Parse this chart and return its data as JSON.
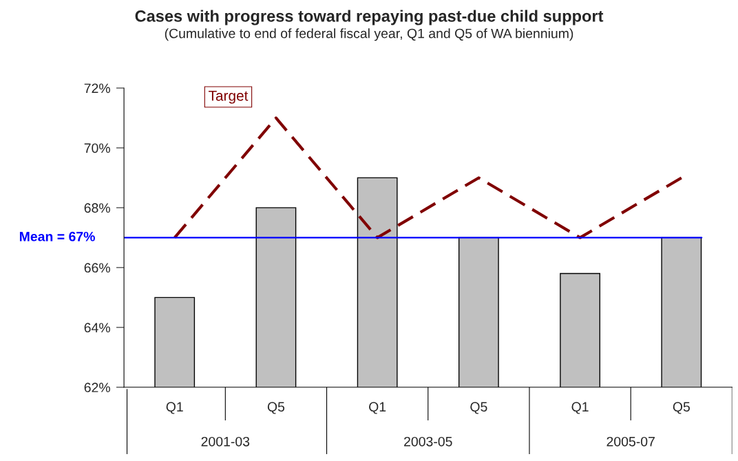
{
  "chart_data": {
    "type": "bar",
    "title": "Cases with progress toward repaying past-due child support",
    "subtitle": "(Cumulative to end of federal fiscal year, Q1 and Q5 of WA biennium)",
    "categories": [
      "Q1",
      "Q5",
      "Q1",
      "Q5",
      "Q1",
      "Q5"
    ],
    "series": [
      {
        "color": "#c0c0c0",
        "values": [
          65,
          68,
          69,
          67,
          65.8,
          67
        ]
      },
      {
        "type": "line",
        "name": "Target",
        "color": "#800000",
        "line_style": "dashed",
        "marker": "none",
        "values": [
          67,
          71,
          67,
          69,
          67,
          69
        ]
      }
    ],
    "annotations": [
      "2001-03",
      "2003-05",
      "2005-07"
    ],
    "ref_lines": [
      {
        "axis": "y",
        "value": 67,
        "label": "Mean = 67%",
        "color": "#0000ff"
      }
    ],
    "ylim": [
      62,
      72
    ],
    "yticks": [
      {
        "value": 62,
        "label": "62%"
      },
      {
        "value": 64,
        "label": "64%"
      },
      {
        "value": 66,
        "label": "66%"
      },
      {
        "value": 68,
        "label": "68%"
      },
      {
        "value": 70,
        "label": "70%"
      },
      {
        "value": 72,
        "label": "72%"
      }
    ],
    "grid": false,
    "legend": false
  }
}
